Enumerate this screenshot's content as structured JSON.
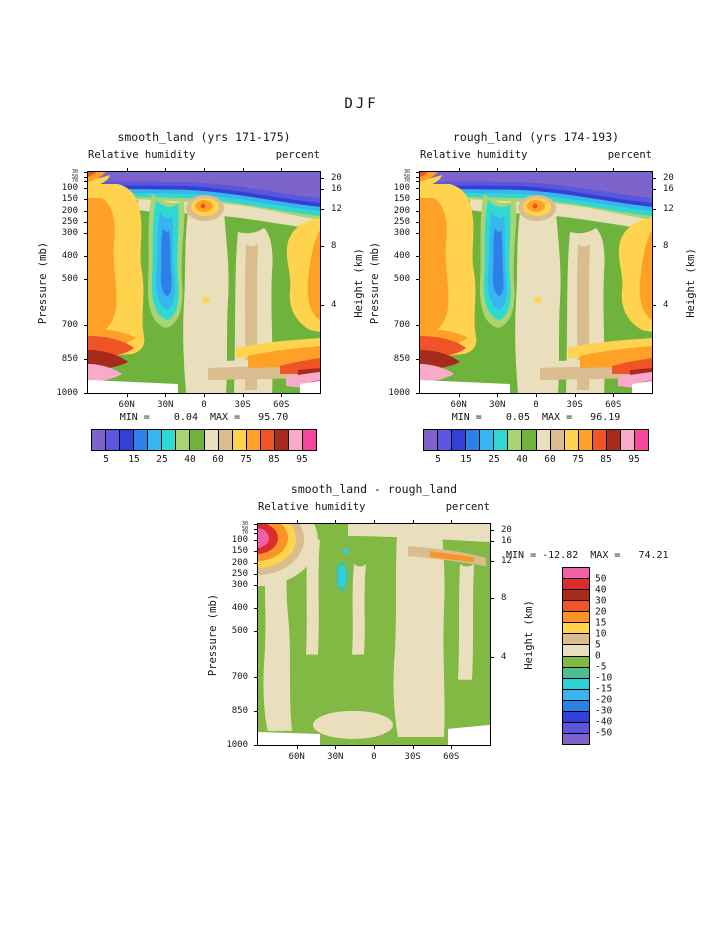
{
  "page": {
    "title": "DJF"
  },
  "panels": [
    {
      "title": "smooth_land (yrs 171-175)",
      "subtitle_left": "Relative humidity",
      "subtitle_right": "percent",
      "minmax": "MIN =    0.04  MAX =   95.70",
      "y_left_title": "Pressure (mb)",
      "y_right_title": "Height (km)"
    },
    {
      "title": "rough_land (yrs 174-193)",
      "subtitle_left": "Relative humidity",
      "subtitle_right": "percent",
      "minmax": "MIN =    0.05  MAX =   96.19",
      "y_left_title": "Pressure (mb)",
      "y_right_title": "Height (km)"
    },
    {
      "title": "smooth_land - rough_land",
      "subtitle_left": "Relative humidity",
      "subtitle_right": "percent",
      "minmax": "MIN = -12.82  MAX =   74.21",
      "y_left_title": "Pressure (mb)",
      "y_right_title": "Height (km)"
    }
  ],
  "axes": {
    "pressure_ticks": [
      {
        "label": "30",
        "pct": 0,
        "small": true
      },
      {
        "label": "50",
        "pct": 2.1,
        "small": true
      },
      {
        "label": "70",
        "pct": 4.1,
        "small": true
      },
      {
        "label": "100",
        "pct": 7.2
      },
      {
        "label": "150",
        "pct": 12.4
      },
      {
        "label": "200",
        "pct": 17.5
      },
      {
        "label": "250",
        "pct": 22.7
      },
      {
        "label": "300",
        "pct": 27.8
      },
      {
        "label": "400",
        "pct": 38.1
      },
      {
        "label": "500",
        "pct": 48.5
      },
      {
        "label": "700",
        "pct": 69.1
      },
      {
        "label": "850",
        "pct": 84.5
      },
      {
        "label": "1000",
        "pct": 100
      }
    ],
    "height_ticks": [
      {
        "label": "20",
        "pct": 2.6
      },
      {
        "label": "16",
        "pct": 7.5
      },
      {
        "label": "12",
        "pct": 16.9
      },
      {
        "label": "8",
        "pct": 33.6
      },
      {
        "label": "4",
        "pct": 60.4
      }
    ],
    "lat_ticks": [
      {
        "label": "60N",
        "pct": 16.67
      },
      {
        "label": "30N",
        "pct": 33.33
      },
      {
        "label": "0",
        "pct": 50
      },
      {
        "label": "30S",
        "pct": 66.67
      },
      {
        "label": "60S",
        "pct": 83.33
      }
    ]
  },
  "colorbars": {
    "rh": {
      "orientation": "horizontal",
      "colors": [
        "#7d64cc",
        "#5b55e0",
        "#3340d8",
        "#2f7fe8",
        "#38b5ee",
        "#30d8d4",
        "#a8d474",
        "#6fb33c",
        "#e9dfbd",
        "#d9bd8f",
        "#ffd34e",
        "#ffa127",
        "#ee5426",
        "#a62b1c",
        "#f9aacb",
        "#f5469e"
      ],
      "labels": [
        {
          "text": "5",
          "pct": 6.25
        },
        {
          "text": "15",
          "pct": 18.75
        },
        {
          "text": "25",
          "pct": 31.25
        },
        {
          "text": "40",
          "pct": 43.75
        },
        {
          "text": "60",
          "pct": 56.25
        },
        {
          "text": "75",
          "pct": 68.75
        },
        {
          "text": "85",
          "pct": 81.25
        },
        {
          "text": "95",
          "pct": 93.75
        }
      ]
    },
    "diff": {
      "orientation": "vertical",
      "colors": [
        "#f260a8",
        "#dc2c2c",
        "#a62b1c",
        "#ee5426",
        "#fb9427",
        "#ffd34e",
        "#d9bd8f",
        "#e9dfbd",
        "#82b944",
        "#4fbf8f",
        "#2fd0d8",
        "#38b5ee",
        "#2f7fe8",
        "#3340d8",
        "#5b55e0",
        "#7d64cc"
      ],
      "labels": [
        {
          "text": "50",
          "pct": 6.25
        },
        {
          "text": "40",
          "pct": 12.5
        },
        {
          "text": "30",
          "pct": 18.75
        },
        {
          "text": "20",
          "pct": 25
        },
        {
          "text": "15",
          "pct": 31.25
        },
        {
          "text": "10",
          "pct": 37.5
        },
        {
          "text": "5",
          "pct": 43.75
        },
        {
          "text": "0",
          "pct": 50
        },
        {
          "text": "-5",
          "pct": 56.25
        },
        {
          "text": "-10",
          "pct": 62.5
        },
        {
          "text": "-15",
          "pct": 68.75
        },
        {
          "text": "-20",
          "pct": 75
        },
        {
          "text": "-30",
          "pct": 81.25
        },
        {
          "text": "-40",
          "pct": 87.5
        },
        {
          "text": "-50",
          "pct": 93.75
        }
      ]
    }
  },
  "chart_data": [
    {
      "type": "heatmap",
      "panel": "top-left",
      "season": "DJF",
      "title": "smooth_land (yrs 171-175)",
      "variable": "Relative humidity",
      "units": "percent",
      "x_ticks": [
        "60N",
        "30N",
        "0",
        "30S",
        "60S"
      ],
      "x_range": [
        "90N",
        "90S"
      ],
      "y_left_label": "Pressure (mb)",
      "y_left_ticks": [
        1000,
        850,
        700,
        500,
        400,
        300,
        250,
        200,
        150,
        100,
        70,
        50,
        30
      ],
      "y_right_label": "Height (km)",
      "y_right_ticks": [
        4,
        8,
        12,
        16,
        20
      ],
      "contour_levels": [
        5,
        10,
        15,
        20,
        25,
        30,
        40,
        50,
        60,
        70,
        75,
        80,
        85,
        90,
        95
      ],
      "colorbar_labeled_levels": [
        5,
        15,
        25,
        40,
        60,
        75,
        85,
        95
      ],
      "min": 0.04,
      "max": 95.7
    },
    {
      "type": "heatmap",
      "panel": "top-right",
      "season": "DJF",
      "title": "rough_land (yrs 174-193)",
      "variable": "Relative humidity",
      "units": "percent",
      "x_ticks": [
        "60N",
        "30N",
        "0",
        "30S",
        "60S"
      ],
      "x_range": [
        "90N",
        "90S"
      ],
      "y_left_label": "Pressure (mb)",
      "y_left_ticks": [
        1000,
        850,
        700,
        500,
        400,
        300,
        250,
        200,
        150,
        100,
        70,
        50,
        30
      ],
      "y_right_label": "Height (km)",
      "y_right_ticks": [
        4,
        8,
        12,
        16,
        20
      ],
      "contour_levels": [
        5,
        10,
        15,
        20,
        25,
        30,
        40,
        50,
        60,
        70,
        75,
        80,
        85,
        90,
        95
      ],
      "colorbar_labeled_levels": [
        5,
        15,
        25,
        40,
        60,
        75,
        85,
        95
      ],
      "min": 0.05,
      "max": 96.19
    },
    {
      "type": "heatmap",
      "panel": "bottom",
      "season": "DJF",
      "title": "smooth_land - rough_land",
      "variable": "Relative humidity",
      "units": "percent",
      "x_ticks": [
        "60N",
        "30N",
        "0",
        "30S",
        "60S"
      ],
      "x_range": [
        "90N",
        "90S"
      ],
      "y_left_label": "Pressure (mb)",
      "y_left_ticks": [
        1000,
        850,
        700,
        500,
        400,
        300,
        250,
        200,
        150,
        100,
        70,
        50,
        30
      ],
      "y_right_label": "Height (km)",
      "y_right_ticks": [
        4,
        8,
        12,
        16,
        20
      ],
      "contour_levels": [
        -50,
        -40,
        -30,
        -20,
        -15,
        -10,
        -5,
        0,
        5,
        10,
        15,
        20,
        30,
        40,
        50
      ],
      "min": -12.82,
      "max": 74.21
    }
  ]
}
